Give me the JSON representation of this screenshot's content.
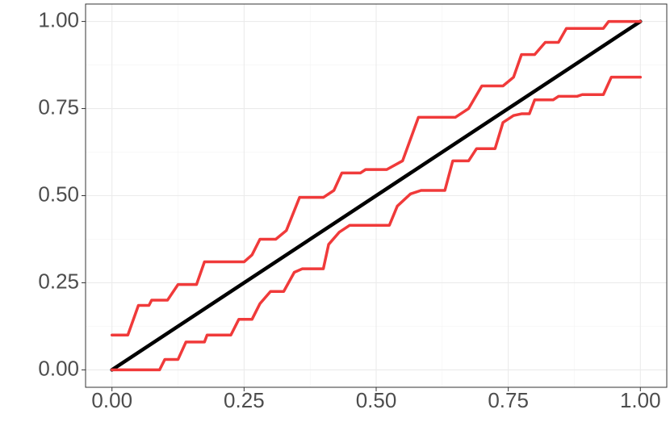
{
  "chart_data": {
    "type": "line",
    "xlim": [
      -0.05,
      1.05
    ],
    "ylim": [
      -0.05,
      1.05
    ],
    "xticks": [
      {
        "value": 0,
        "label": "0.00"
      },
      {
        "value": 0.25,
        "label": "0.25"
      },
      {
        "value": 0.5,
        "label": "0.50"
      },
      {
        "value": 0.75,
        "label": "0.75"
      },
      {
        "value": 1,
        "label": "1.00"
      }
    ],
    "yticks": [
      {
        "value": 0,
        "label": "0.00"
      },
      {
        "value": 0.25,
        "label": "0.25"
      },
      {
        "value": 0.5,
        "label": "0.50"
      },
      {
        "value": 0.75,
        "label": "0.75"
      },
      {
        "value": 1,
        "label": "1.00"
      }
    ],
    "grid": true,
    "minor_grid": true,
    "series": [
      {
        "color": "#000000",
        "width": 4.5,
        "x": [
          0,
          1
        ],
        "values": [
          0,
          1
        ]
      },
      {
        "color": "#f03a3a",
        "width": 3.5,
        "x": [
          0,
          0.03,
          0.05,
          0.07,
          0.075,
          0.105,
          0.125,
          0.16,
          0.175,
          0.25,
          0.265,
          0.28,
          0.31,
          0.33,
          0.355,
          0.4,
          0.42,
          0.435,
          0.47,
          0.48,
          0.52,
          0.55,
          0.58,
          0.65,
          0.675,
          0.7,
          0.74,
          0.76,
          0.775,
          0.8,
          0.82,
          0.845,
          0.86,
          0.93,
          0.94,
          1
        ],
        "values": [
          0.1,
          0.1,
          0.185,
          0.185,
          0.2,
          0.2,
          0.245,
          0.245,
          0.31,
          0.31,
          0.33,
          0.375,
          0.375,
          0.4,
          0.495,
          0.495,
          0.515,
          0.565,
          0.565,
          0.575,
          0.575,
          0.6,
          0.725,
          0.725,
          0.75,
          0.815,
          0.815,
          0.84,
          0.905,
          0.905,
          0.94,
          0.94,
          0.98,
          0.98,
          1,
          1
        ]
      },
      {
        "color": "#f03a3a",
        "width": 3.5,
        "x": [
          0,
          0.09,
          0.1,
          0.125,
          0.14,
          0.175,
          0.18,
          0.225,
          0.24,
          0.265,
          0.28,
          0.3,
          0.325,
          0.345,
          0.36,
          0.4,
          0.41,
          0.43,
          0.45,
          0.525,
          0.54,
          0.565,
          0.585,
          0.63,
          0.645,
          0.675,
          0.69,
          0.725,
          0.74,
          0.76,
          0.775,
          0.79,
          0.8,
          0.835,
          0.845,
          0.88,
          0.89,
          0.93,
          0.945,
          1
        ],
        "values": [
          0,
          0,
          0.03,
          0.03,
          0.08,
          0.08,
          0.1,
          0.1,
          0.145,
          0.145,
          0.19,
          0.225,
          0.225,
          0.28,
          0.29,
          0.29,
          0.36,
          0.395,
          0.415,
          0.415,
          0.47,
          0.505,
          0.515,
          0.515,
          0.6,
          0.6,
          0.635,
          0.635,
          0.71,
          0.73,
          0.735,
          0.735,
          0.775,
          0.775,
          0.785,
          0.785,
          0.79,
          0.79,
          0.84,
          0.84
        ]
      }
    ]
  }
}
